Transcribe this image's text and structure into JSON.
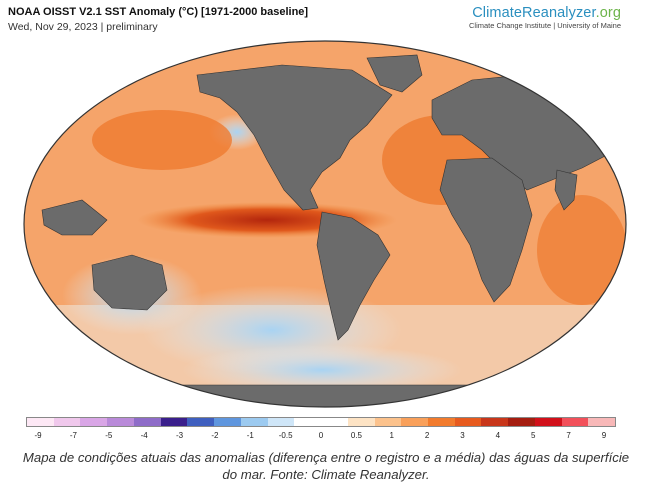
{
  "header": {
    "title": "NOAA OISST V2.1 SST Anomaly (°C) [1971-2000 baseline]",
    "date_line": "Wed, Nov 29, 2023 | preliminary"
  },
  "brand": {
    "name_main": "ClimateReanalyzer",
    "name_suffix": ".org",
    "tagline": "Climate Change Institute | University of Maine"
  },
  "legend": {
    "ticks": [
      "-9",
      "-7",
      "-5",
      "-4",
      "-3",
      "-2",
      "-1",
      "-0.5",
      "0",
      "0.5",
      "1",
      "2",
      "3",
      "4",
      "5",
      "7",
      "9"
    ],
    "colors": [
      "#fde8f5",
      "#f0c8ec",
      "#d9a6e6",
      "#b98ad9",
      "#8e6cc8",
      "#3a1f8c",
      "#3f5fbf",
      "#5f96de",
      "#9ccaf0",
      "#cfe6f8",
      "#ffffff",
      "#ffffff",
      "#fde3c4",
      "#fcc28c",
      "#f9a05a",
      "#f27b2d",
      "#e75a1e",
      "#c8361a",
      "#a51d10",
      "#d1101a",
      "#f2505a",
      "#f8b8b8"
    ]
  },
  "caption": "Mapa de condições atuais das anomalias (diferença entre o registro e a média) das águas da superfície do mar. Fonte: Climate Reanalyzer."
}
